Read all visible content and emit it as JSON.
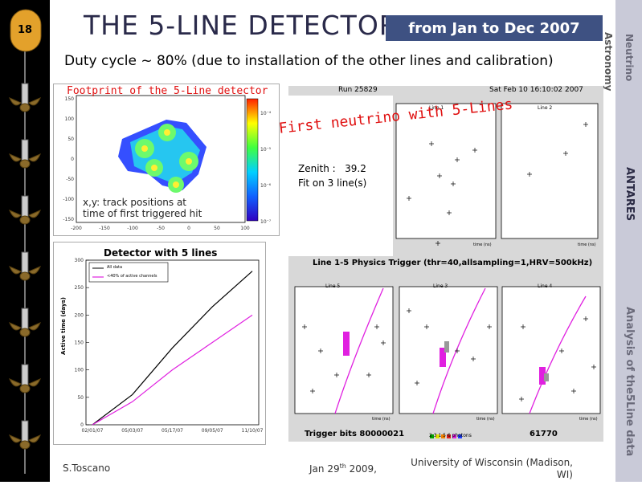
{
  "slide": {
    "number": "18",
    "title": "THE 5-LINE DETECTOR",
    "date_badge": "from Jan to Dec 2007",
    "duty_cycle": "Duty cycle ~ 80% (due to installation of the other lines and calibration)"
  },
  "sidebar_right": {
    "neutrino": "Neutrino",
    "astronomy": "Astronomy",
    "antares": "ANTARES",
    "analysis": "Analysis of the5Line data"
  },
  "footprint_panel": {
    "caption": "Footprint of the 5-Line detector",
    "note": "x,y: track positions at\ntime of first triggered hit",
    "x_ticks": [
      "-200",
      "-150",
      "-100",
      "-50",
      "0",
      "50",
      "100"
    ],
    "y_ticks": [
      "150",
      "100",
      "50",
      "0",
      "-50",
      "-100",
      "-150"
    ],
    "color_scale_ticks": [
      "10⁻⁴",
      "10⁻⁵",
      "10⁻⁶",
      "10⁻⁷"
    ]
  },
  "active_time_chart": {
    "chart_data": {
      "type": "line",
      "title": "Detector with 5 lines",
      "ylabel": "Active time (days)",
      "x": [
        "02/01/07",
        "05/03/07",
        "05/17/07",
        "09/05/07",
        "11/10/07"
      ],
      "series": [
        {
          "name": "All data",
          "color": "#000000",
          "values": [
            0,
            55,
            140,
            215,
            280
          ]
        },
        {
          "name": "<40% of active channels",
          "color": "#e020e0",
          "values": [
            0,
            42,
            100,
            150,
            200
          ]
        }
      ],
      "y_ticks": [
        "0",
        "50",
        "100",
        "150",
        "200",
        "250",
        "300"
      ],
      "ylim": [
        0,
        300
      ]
    }
  },
  "event_display": {
    "run": "Run 25829",
    "datetime": "Sat Feb 10 16:10:02 2007",
    "headline": "First neutrino with 5-Lines",
    "zenith": "Zenith :   39.2",
    "fit": "Fit on 3 line(s)",
    "trigger": "Line 1-5 Physics Trigger (thr=40,allsampling=1,HRV=500kHz)",
    "trigger_bits": "Trigger bits 80000021",
    "event_id": "61770",
    "photons": "2 3 1 5 6 photons",
    "top_panels": [
      "Line 1",
      "Line 2"
    ],
    "bottom_panels": [
      "Line 5",
      "Line 3",
      "Line 4"
    ],
    "x_label": "time (ns)",
    "x_ticks": [
      "-1500",
      "-1000",
      "-500",
      "0",
      "500",
      "1000",
      "1500",
      "2000"
    ],
    "y_ticks": [
      "50",
      "100",
      "150",
      "200",
      "250",
      "300",
      "350",
      "400",
      "450",
      "500"
    ]
  },
  "footer": {
    "author": "S.Toscano",
    "date_prefix": "Jan 29",
    "date_sup": "th",
    "date_suffix": " 2009,",
    "institution": "University of Wisconsin  (Madison, WI)"
  },
  "colors": {
    "title": "#2a2a4a",
    "badge_bg": "#3e5182",
    "headline": "#e01010",
    "magenta": "#e020e0"
  }
}
